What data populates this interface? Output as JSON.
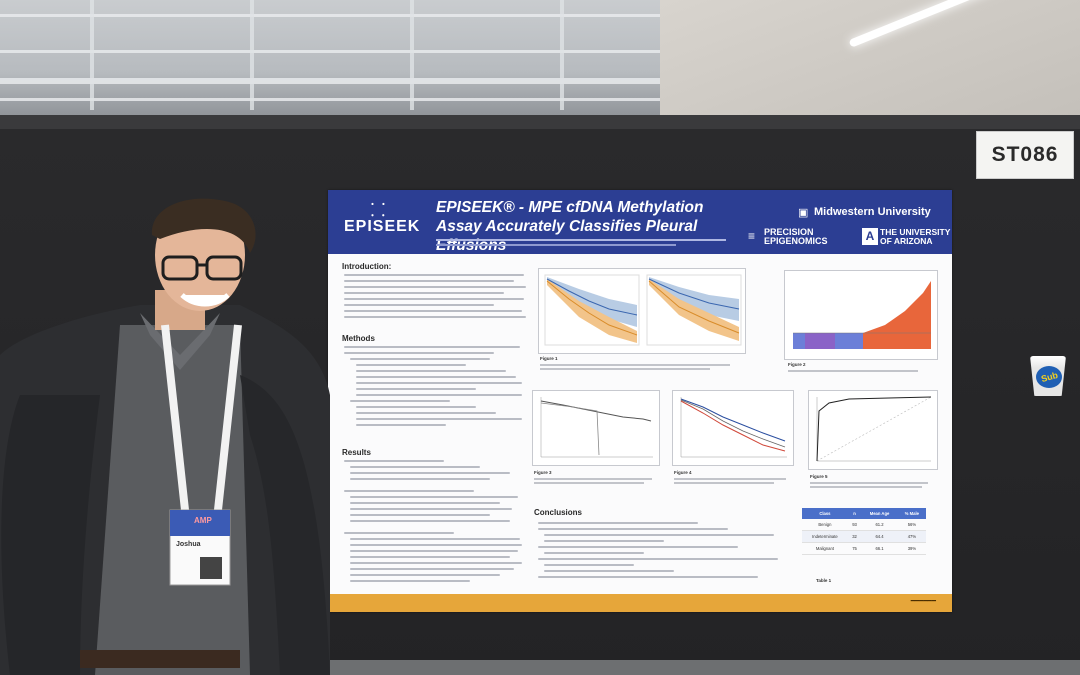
{
  "booth_sign": {
    "label": "ST086"
  },
  "poster": {
    "logo": "EPISEEK",
    "title": "EPISEEK® - MPE cfDNA Methylation Assay Accurately Classifies Pleural Effusions",
    "affiliations": {
      "midwestern": "Midwestern University",
      "precision_line1": "PRECISION",
      "precision_line2": "EPIGENOMICS",
      "arizona_line1": "THE UNIVERSITY",
      "arizona_line2": "OF ARIZONA"
    },
    "sections": {
      "introduction": "Introduction:",
      "methods": "Methods",
      "results": "Results",
      "conclusions": "Conclusions"
    },
    "figure_captions": {
      "fig1": "Figure 1",
      "fig2": "Figure 2",
      "fig3": "Figure 3",
      "fig4": "Figure 4",
      "fig5": "Figure 5"
    },
    "table": {
      "headers": [
        "Class",
        "n",
        "Mean Age",
        "% Male"
      ],
      "rows": [
        [
          "Benign",
          "93",
          "61.2",
          "56%"
        ],
        [
          "Indeterminate",
          "32",
          "64.4",
          "47%"
        ],
        [
          "Malignant",
          "75",
          "66.1",
          "39%"
        ]
      ],
      "caption": "Table 1"
    }
  },
  "cup": {
    "label": "Sub"
  },
  "badge": {
    "header": "AMP",
    "name": "Joshua"
  },
  "colors": {
    "poster_header": "#2c3e93",
    "poster_footer": "#e6a63a",
    "board": "#262628",
    "lanyard": "#f2f2f2"
  }
}
